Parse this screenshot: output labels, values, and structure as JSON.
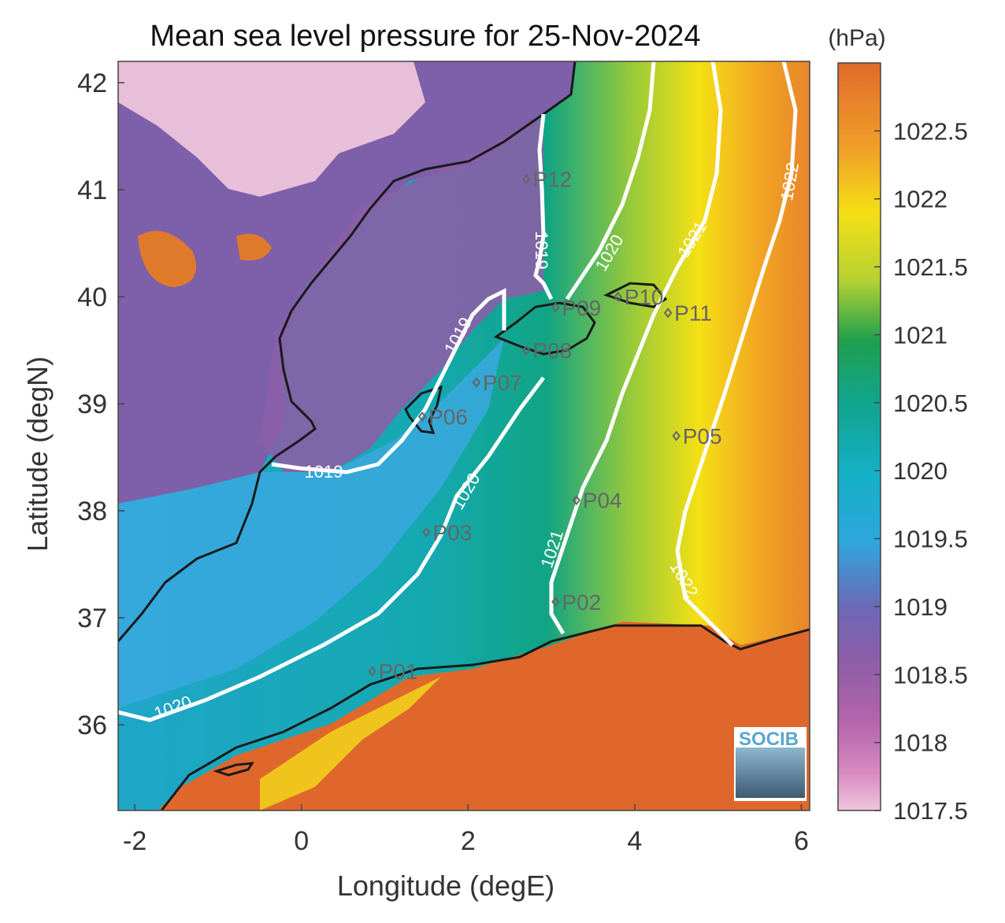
{
  "title": "Mean sea level pressure for 25-Nov-2024",
  "colorbar": {
    "unit_label": "(hPa)",
    "min": 1017.5,
    "max": 1023,
    "ticks": [
      "1017.5",
      "1018",
      "1018.5",
      "1019",
      "1019.5",
      "1020",
      "1020.5",
      "1021",
      "1021.5",
      "1022",
      "1022.5"
    ]
  },
  "x_axis": {
    "label": "Longitude (degE)",
    "range": [
      -2.2,
      6.1
    ],
    "ticks": [
      "-2",
      "0",
      "2",
      "4",
      "6"
    ]
  },
  "y_axis": {
    "label": "Latitude (degN)",
    "range": [
      35.2,
      42.2
    ],
    "ticks": [
      "36",
      "37",
      "38",
      "39",
      "40",
      "41",
      "42"
    ]
  },
  "contour_labels": [
    "1019",
    "1019",
    "1019",
    "1020",
    "1020",
    "1020",
    "1021",
    "1021",
    "1022",
    "1022"
  ],
  "stations": [
    {
      "name": "P01",
      "lon": 0.85,
      "lat": 36.5
    },
    {
      "name": "P02",
      "lon": 3.05,
      "lat": 37.15
    },
    {
      "name": "P03",
      "lon": 1.5,
      "lat": 37.8
    },
    {
      "name": "P04",
      "lon": 3.3,
      "lat": 38.1
    },
    {
      "name": "P05",
      "lon": 4.5,
      "lat": 38.7
    },
    {
      "name": "P06",
      "lon": 1.45,
      "lat": 38.88
    },
    {
      "name": "P07",
      "lon": 2.1,
      "lat": 39.2
    },
    {
      "name": "P08",
      "lon": 2.7,
      "lat": 39.5
    },
    {
      "name": "P09",
      "lon": 3.05,
      "lat": 39.9
    },
    {
      "name": "P10",
      "lon": 3.8,
      "lat": 40.0
    },
    {
      "name": "P11",
      "lon": 4.4,
      "lat": 39.85
    },
    {
      "name": "P12",
      "lon": 2.7,
      "lat": 41.1
    }
  ],
  "logo": {
    "text": "SOCIB"
  },
  "colors": {
    "contour": "#ffffff",
    "coastline": "#1a1a1a",
    "station_marker": "#666666"
  }
}
